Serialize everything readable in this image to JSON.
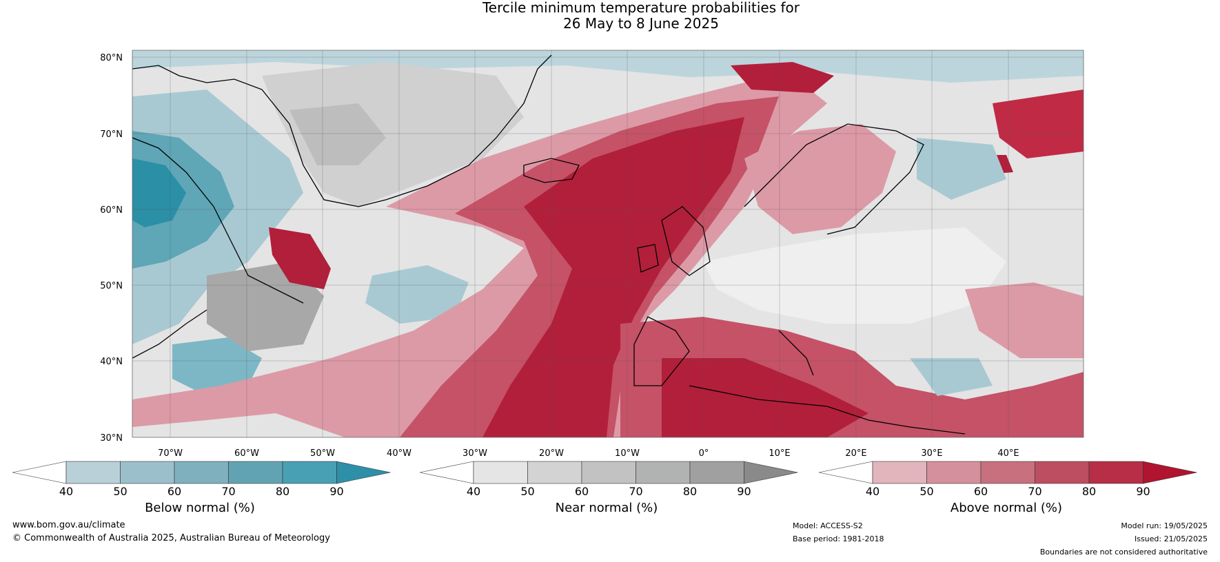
{
  "title": {
    "line1": "Tercile minimum temperature probabilities for",
    "line2": "26 May to 8 June 2025"
  },
  "map": {
    "lat_labels": [
      "80°N",
      "70°N",
      "60°N",
      "50°N",
      "40°N",
      "30°N"
    ],
    "lon_labels": [
      "70°W",
      "60°W",
      "50°W",
      "40°W",
      "30°W",
      "20°W",
      "10°W",
      "0°",
      "10°E",
      "20°E",
      "30°E",
      "40°E"
    ],
    "colors": {
      "ocean_red": "#b21f3b",
      "red_mid": "#c55267",
      "red_light": "#dc9aa6",
      "grey_light": "#e2e2e2",
      "grey_mid": "#c4c4c4",
      "teal_light": "#a9c9d2",
      "teal_mid": "#5fa6b6",
      "teal_dark": "#2b8fa6"
    }
  },
  "colorbars": [
    {
      "caption": "Below normal (%)",
      "ticks": [
        "40",
        "50",
        "60",
        "70",
        "80",
        "90"
      ],
      "colors": [
        "#ffffff",
        "#b9d0d8",
        "#9cc0cb",
        "#7fb0bd",
        "#62a3b3",
        "#48a0b4",
        "#2e8fa8"
      ]
    },
    {
      "caption": "Near normal (%)",
      "ticks": [
        "40",
        "50",
        "60",
        "70",
        "80",
        "90"
      ],
      "colors": [
        "#ffffff",
        "#e5e5e5",
        "#d3d3d3",
        "#c2c2c2",
        "#b1b3b3",
        "#a0a0a0",
        "#8a8a8a"
      ]
    },
    {
      "caption": "Above normal (%)",
      "ticks": [
        "40",
        "50",
        "60",
        "70",
        "80",
        "90"
      ],
      "colors": [
        "#ffffff",
        "#e2b4bc",
        "#d4909c",
        "#c8707e",
        "#bd4d60",
        "#b72e46",
        "#b0142f"
      ]
    }
  ],
  "footer": {
    "website": "www.bom.gov.au/climate",
    "copyright": "© Commonwealth of Australia 2025, Australian Bureau of Meteorology",
    "model": "Model: ACCESS-S2",
    "base_period": "Base period: 1981-2018",
    "model_run": "Model run: 19/05/2025",
    "issued": "Issued: 21/05/2025",
    "disclaimer": "Boundaries are not considered authoritative"
  }
}
